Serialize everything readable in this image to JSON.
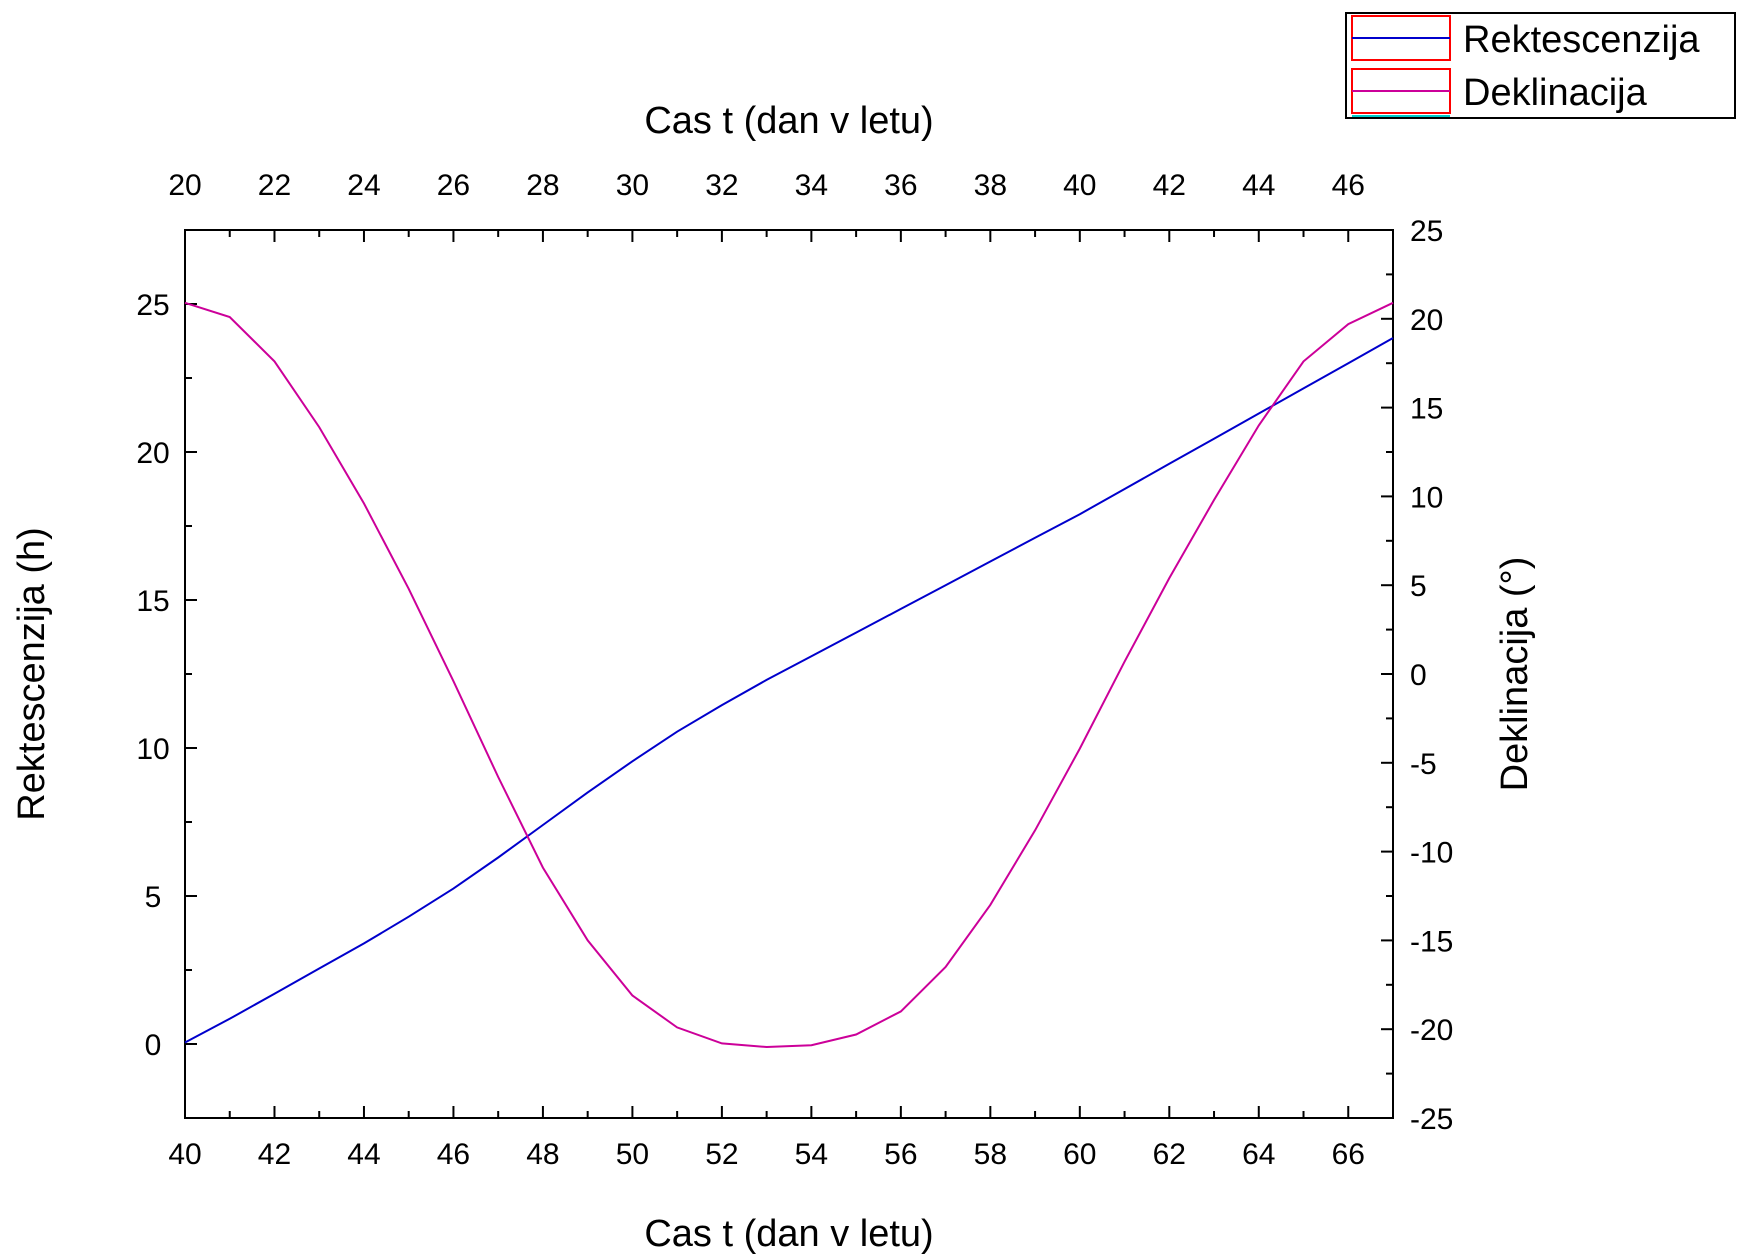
{
  "chart_data": {
    "type": "line",
    "xlabel_bottom": "Cas t (dan v letu)",
    "xlabel_top": "Cas t (dan v letu)",
    "ylabel_left": "Rektescenzija (h)",
    "ylabel_right": "Deklinacija (°)",
    "x_bottom_range": [
      40,
      67
    ],
    "x_top_range": [
      20,
      47
    ],
    "y_left_range": [
      -2.5,
      27.5
    ],
    "y_right_range": [
      -25,
      25
    ],
    "x_bottom_ticks": [
      "40",
      "42",
      "44",
      "46",
      "48",
      "50",
      "52",
      "54",
      "56",
      "58",
      "60",
      "62",
      "64",
      "66"
    ],
    "x_top_ticks": [
      "20",
      "22",
      "24",
      "26",
      "28",
      "30",
      "32",
      "34",
      "36",
      "38",
      "40",
      "42",
      "44",
      "46"
    ],
    "y_left_ticks": [
      "0",
      "5",
      "10",
      "15",
      "20",
      "25"
    ],
    "y_right_ticks": [
      "-25",
      "-20",
      "-15",
      "-10",
      "-5",
      "0",
      "5",
      "10",
      "15",
      "20",
      "25"
    ],
    "legend": {
      "position": "top-right",
      "entries": [
        "Rektescenzija",
        "Deklinacija"
      ]
    },
    "grid": false,
    "series": [
      {
        "name": "Rektescenzija",
        "axis": "left",
        "color": "#0000cc",
        "x": [
          40,
          41,
          42,
          43,
          44,
          45,
          46,
          47,
          48,
          49,
          50,
          51,
          52,
          53,
          54,
          55,
          56,
          57,
          58,
          59,
          60,
          61,
          62,
          63,
          64,
          65,
          66,
          67
        ],
        "values": [
          0.05,
          0.85,
          1.7,
          2.55,
          3.4,
          4.3,
          5.25,
          6.3,
          7.4,
          8.5,
          9.55,
          10.55,
          11.45,
          12.3,
          13.1,
          13.9,
          14.7,
          15.5,
          16.3,
          17.1,
          17.9,
          18.75,
          19.6,
          20.45,
          21.3,
          22.15,
          23.0,
          23.85
        ]
      },
      {
        "name": "Deklinacija",
        "axis": "right",
        "color": "#cc0099",
        "x": [
          40,
          41,
          42,
          43,
          44,
          45,
          46,
          47,
          48,
          49,
          50,
          51,
          52,
          53,
          54,
          55,
          56,
          57,
          58,
          59,
          60,
          61,
          62,
          63,
          64,
          65,
          66,
          67
        ],
        "values": [
          20.9,
          20.1,
          17.6,
          13.9,
          9.6,
          4.8,
          -0.4,
          -5.8,
          -10.9,
          -15.0,
          -18.1,
          -19.9,
          -20.8,
          -21.0,
          -20.9,
          -20.3,
          -19.0,
          -16.5,
          -13.0,
          -8.8,
          -4.2,
          0.7,
          5.4,
          9.8,
          14.0,
          17.6,
          19.7,
          20.9
        ]
      }
    ]
  }
}
